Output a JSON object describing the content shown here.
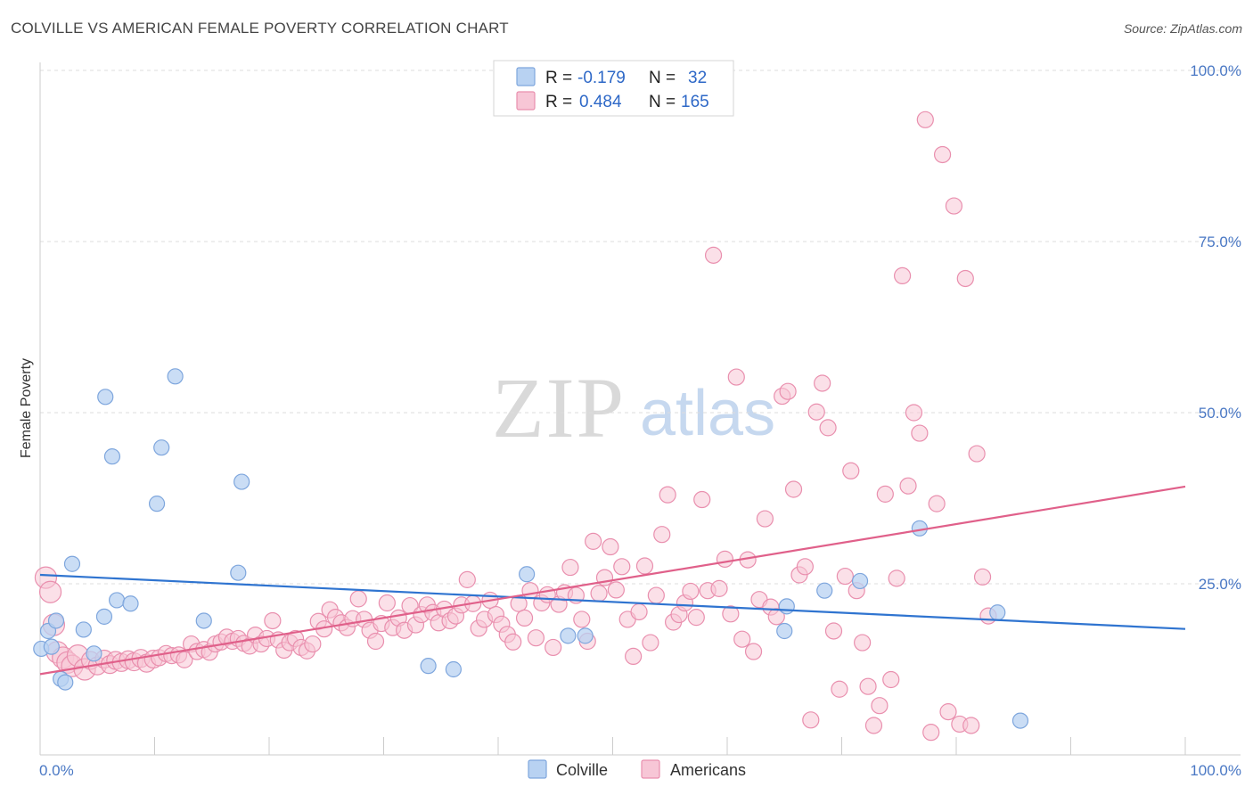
{
  "title": "COLVILLE VS AMERICAN FEMALE POVERTY CORRELATION CHART",
  "source": "Source: ZipAtlas.com",
  "watermark": {
    "part1": "ZIP",
    "part2": "atlas"
  },
  "legend": {
    "rows": [
      {
        "r_label": "R =",
        "r_value": "-0.179",
        "n_label": "N =",
        "n_value": "32"
      },
      {
        "r_label": "R =",
        "r_value": "0.484",
        "n_label": "N =",
        "n_value": "165"
      }
    ]
  },
  "bottom_legend": [
    "Colville",
    "Americans"
  ],
  "colors": {
    "colville_fill": "#b8d2f2",
    "colville_stroke": "#7ea6dd",
    "colville_line": "#2f74d0",
    "americans_fill": "#f7c6d6",
    "americans_stroke": "#e98fae",
    "americans_line": "#e0608a",
    "tick_label": "#4a78c4",
    "grid": "#dddddd"
  },
  "chart_data": {
    "type": "scatter",
    "title": "COLVILLE VS AMERICAN FEMALE POVERTY CORRELATION CHART",
    "xlabel": "",
    "ylabel": "Female Poverty",
    "xlim": [
      0,
      100
    ],
    "ylim": [
      0,
      100
    ],
    "x_tick_labels": [
      "0.0%",
      "100.0%"
    ],
    "y_ticks": [
      25,
      50,
      75,
      100
    ],
    "y_tick_labels": [
      "25.0%",
      "50.0%",
      "75.0%",
      "100.0%"
    ],
    "grid": "horizontal dashed",
    "series": [
      {
        "name": "Colville",
        "trend": {
          "x": [
            0,
            100
          ],
          "y": [
            26.3,
            18.4
          ]
        },
        "points": [
          [
            0.1,
            15.5
          ],
          [
            0.7,
            18.1
          ],
          [
            1.4,
            19.6
          ],
          [
            1.8,
            11.1
          ],
          [
            2.2,
            10.6
          ],
          [
            2.8,
            27.9
          ],
          [
            3.8,
            18.3
          ],
          [
            4.7,
            14.8
          ],
          [
            5.6,
            20.2
          ],
          [
            5.7,
            52.3
          ],
          [
            6.3,
            43.6
          ],
          [
            6.7,
            22.6
          ],
          [
            7.9,
            22.1
          ],
          [
            10.2,
            36.7
          ],
          [
            10.6,
            44.9
          ],
          [
            11.8,
            55.3
          ],
          [
            14.3,
            19.6
          ],
          [
            17.3,
            26.6
          ],
          [
            17.6,
            39.9
          ],
          [
            33.9,
            13.0
          ],
          [
            36.1,
            12.5
          ],
          [
            42.5,
            26.4
          ],
          [
            46.1,
            17.4
          ],
          [
            47.6,
            17.4
          ],
          [
            65.0,
            18.1
          ],
          [
            65.2,
            21.7
          ],
          [
            68.5,
            24.0
          ],
          [
            71.6,
            25.4
          ],
          [
            76.8,
            33.1
          ],
          [
            83.6,
            20.8
          ],
          [
            85.6,
            5.0
          ],
          [
            1.0,
            15.8
          ]
        ]
      },
      {
        "name": "Americans",
        "trend": {
          "x": [
            0,
            100
          ],
          "y": [
            11.8,
            39.2
          ]
        },
        "points": [
          [
            0.5,
            25.9
          ],
          [
            0.9,
            23.8
          ],
          [
            1.2,
            19.0
          ],
          [
            1.5,
            15.0
          ],
          [
            2.0,
            14.2
          ],
          [
            2.4,
            13.5
          ],
          [
            2.8,
            13.0
          ],
          [
            3.3,
            14.5
          ],
          [
            3.9,
            12.5
          ],
          [
            4.4,
            13.8
          ],
          [
            5.0,
            13.0
          ],
          [
            5.6,
            14.0
          ],
          [
            6.1,
            13.2
          ],
          [
            6.6,
            13.8
          ],
          [
            7.1,
            13.5
          ],
          [
            7.7,
            13.9
          ],
          [
            8.2,
            13.6
          ],
          [
            8.8,
            14.1
          ],
          [
            9.3,
            13.4
          ],
          [
            9.9,
            14.0
          ],
          [
            10.4,
            14.2
          ],
          [
            11.0,
            14.8
          ],
          [
            11.5,
            14.5
          ],
          [
            12.1,
            14.6
          ],
          [
            12.6,
            13.9
          ],
          [
            13.2,
            16.2
          ],
          [
            13.7,
            15.1
          ],
          [
            14.3,
            15.4
          ],
          [
            14.8,
            15.0
          ],
          [
            15.3,
            16.2
          ],
          [
            15.8,
            16.5
          ],
          [
            16.3,
            17.2
          ],
          [
            16.8,
            16.6
          ],
          [
            17.3,
            17.0
          ],
          [
            17.8,
            16.3
          ],
          [
            18.3,
            15.9
          ],
          [
            18.8,
            17.5
          ],
          [
            19.3,
            16.2
          ],
          [
            19.8,
            17.0
          ],
          [
            20.3,
            19.6
          ],
          [
            20.8,
            16.8
          ],
          [
            21.3,
            15.3
          ],
          [
            21.8,
            16.4
          ],
          [
            22.3,
            17.0
          ],
          [
            22.8,
            15.7
          ],
          [
            23.3,
            15.2
          ],
          [
            23.8,
            16.2
          ],
          [
            24.3,
            19.5
          ],
          [
            24.8,
            18.4
          ],
          [
            25.3,
            21.2
          ],
          [
            25.8,
            20.1
          ],
          [
            26.3,
            19.3
          ],
          [
            26.8,
            18.6
          ],
          [
            27.3,
            19.9
          ],
          [
            27.8,
            22.8
          ],
          [
            28.3,
            19.8
          ],
          [
            28.8,
            18.2
          ],
          [
            29.3,
            16.6
          ],
          [
            29.8,
            19.2
          ],
          [
            30.3,
            22.2
          ],
          [
            30.8,
            18.6
          ],
          [
            31.3,
            20.0
          ],
          [
            31.8,
            18.2
          ],
          [
            32.3,
            21.8
          ],
          [
            32.8,
            19.0
          ],
          [
            33.3,
            20.5
          ],
          [
            33.8,
            21.9
          ],
          [
            34.3,
            20.8
          ],
          [
            34.8,
            19.3
          ],
          [
            35.3,
            21.3
          ],
          [
            35.8,
            19.6
          ],
          [
            36.3,
            20.3
          ],
          [
            36.8,
            21.9
          ],
          [
            37.3,
            25.6
          ],
          [
            37.8,
            22.1
          ],
          [
            38.3,
            18.5
          ],
          [
            38.8,
            19.8
          ],
          [
            39.3,
            22.6
          ],
          [
            39.8,
            20.5
          ],
          [
            40.3,
            19.1
          ],
          [
            40.8,
            17.6
          ],
          [
            41.3,
            16.5
          ],
          [
            41.8,
            22.1
          ],
          [
            42.3,
            20.0
          ],
          [
            42.8,
            24.0
          ],
          [
            43.3,
            17.1
          ],
          [
            43.8,
            22.2
          ],
          [
            44.3,
            23.4
          ],
          [
            44.8,
            15.7
          ],
          [
            45.3,
            22.0
          ],
          [
            45.8,
            23.7
          ],
          [
            46.3,
            27.4
          ],
          [
            46.8,
            23.3
          ],
          [
            47.3,
            19.8
          ],
          [
            47.8,
            16.6
          ],
          [
            48.3,
            31.2
          ],
          [
            48.8,
            23.6
          ],
          [
            49.3,
            25.9
          ],
          [
            49.8,
            30.4
          ],
          [
            50.3,
            24.1
          ],
          [
            50.8,
            27.5
          ],
          [
            51.3,
            19.8
          ],
          [
            51.8,
            14.4
          ],
          [
            52.3,
            20.9
          ],
          [
            52.8,
            27.6
          ],
          [
            53.3,
            16.4
          ],
          [
            53.8,
            23.3
          ],
          [
            54.3,
            32.2
          ],
          [
            54.8,
            38.0
          ],
          [
            55.3,
            19.4
          ],
          [
            55.8,
            20.5
          ],
          [
            56.3,
            22.2
          ],
          [
            56.8,
            23.9
          ],
          [
            57.3,
            20.1
          ],
          [
            57.8,
            37.3
          ],
          [
            58.3,
            24.0
          ],
          [
            58.8,
            73.0
          ],
          [
            59.3,
            24.3
          ],
          [
            59.8,
            28.6
          ],
          [
            60.3,
            20.6
          ],
          [
            60.8,
            55.2
          ],
          [
            61.3,
            16.9
          ],
          [
            61.8,
            28.5
          ],
          [
            62.3,
            15.1
          ],
          [
            62.8,
            22.7
          ],
          [
            63.3,
            34.5
          ],
          [
            63.8,
            21.6
          ],
          [
            64.3,
            20.2
          ],
          [
            64.8,
            52.4
          ],
          [
            65.3,
            53.1
          ],
          [
            65.8,
            38.8
          ],
          [
            66.3,
            26.3
          ],
          [
            66.8,
            27.5
          ],
          [
            67.3,
            5.1
          ],
          [
            67.8,
            50.1
          ],
          [
            68.3,
            54.3
          ],
          [
            68.8,
            47.8
          ],
          [
            69.3,
            18.1
          ],
          [
            69.8,
            9.6
          ],
          [
            70.3,
            26.1
          ],
          [
            70.8,
            41.5
          ],
          [
            71.3,
            24.0
          ],
          [
            71.8,
            16.4
          ],
          [
            72.3,
            10.0
          ],
          [
            72.8,
            4.3
          ],
          [
            73.3,
            7.2
          ],
          [
            73.8,
            38.1
          ],
          [
            74.3,
            11.0
          ],
          [
            74.8,
            25.8
          ],
          [
            75.3,
            70.0
          ],
          [
            75.8,
            39.3
          ],
          [
            76.3,
            50.0
          ],
          [
            76.8,
            47.0
          ],
          [
            77.3,
            92.8
          ],
          [
            77.8,
            3.3
          ],
          [
            78.3,
            36.7
          ],
          [
            78.8,
            87.7
          ],
          [
            79.3,
            6.3
          ],
          [
            79.8,
            80.2
          ],
          [
            80.3,
            4.5
          ],
          [
            80.8,
            69.6
          ],
          [
            81.3,
            4.3
          ],
          [
            81.8,
            44.0
          ],
          [
            82.3,
            26.0
          ],
          [
            82.8,
            20.3
          ]
        ]
      }
    ]
  }
}
